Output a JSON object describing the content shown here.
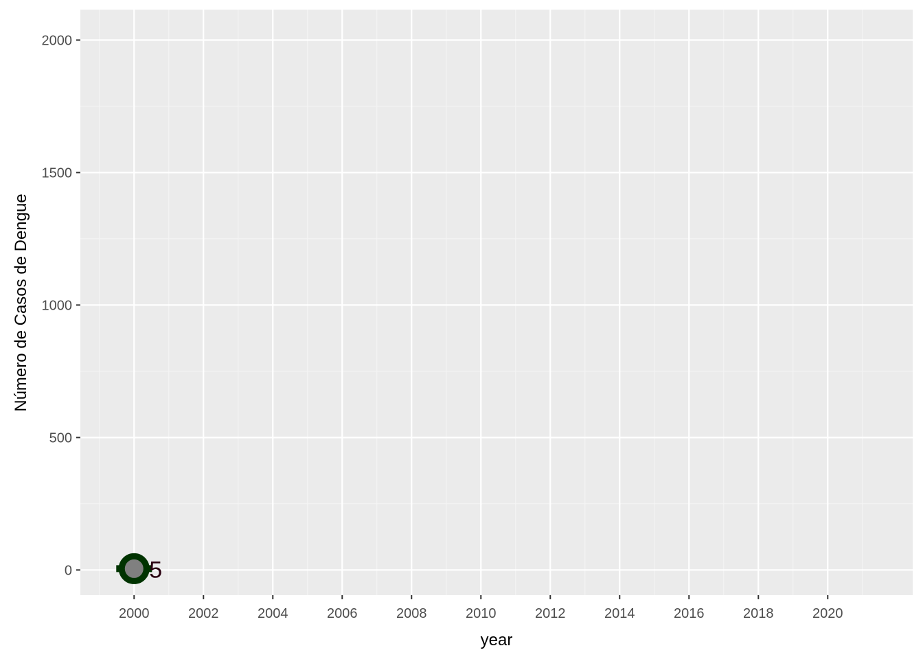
{
  "chart_data": {
    "type": "scatter",
    "title": "",
    "xlabel": "year",
    "ylabel": "Número de Casos de Dengue",
    "xlim": [
      1998.45,
      2022.45
    ],
    "ylim": [
      -95,
      2115
    ],
    "x_ticks": [
      2000,
      2002,
      2004,
      2006,
      2008,
      2010,
      2012,
      2014,
      2016,
      2018,
      2020
    ],
    "x_tick_labels": [
      "2000",
      "2002",
      "2004",
      "2006",
      "2008",
      "2010",
      "2012",
      "2014",
      "2016",
      "2018",
      "2020"
    ],
    "y_ticks": [
      0,
      500,
      1000,
      1500,
      2000
    ],
    "y_tick_labels": [
      "0",
      "500",
      "1000",
      "1500",
      "2000"
    ],
    "grid": true,
    "background": "#ebebeb",
    "series": [
      {
        "x": [
          2000
        ],
        "y": [
          5
        ],
        "labels": [
          "5"
        ],
        "outline_color": "#003300",
        "fill_color": "#808080",
        "label_color": "#2a0010"
      }
    ]
  }
}
